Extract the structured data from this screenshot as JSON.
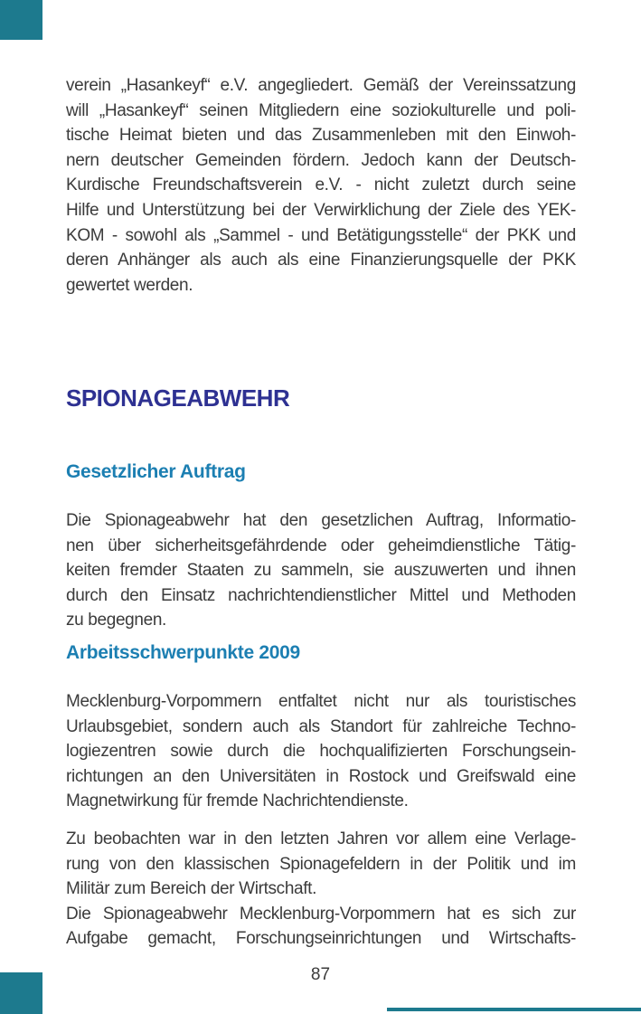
{
  "page": {
    "number": "87",
    "colors": {
      "accent_teal": "#1D7A8E",
      "section_heading": "#2E3192",
      "subheading": "#1C7FB2",
      "body_text": "#3B3B3B"
    }
  },
  "headings": {
    "section_title": "SPIONAGEABWEHR",
    "sub1": "Gesetzlicher Auftrag",
    "sub2": "Arbeitsschwerpunkte 2009"
  },
  "paragraphs": {
    "p1": [
      {
        "t": "verein „Hasankeyf“ e.V. angegliedert. Gemäß der Vereinssatzung",
        "j": true
      },
      {
        "t": "will „Hasankeyf“ seinen Mitgliedern eine soziokulturelle und poli-",
        "j": true
      },
      {
        "t": "tische Heimat bieten und das Zusammenleben mit den Einwoh-",
        "j": true
      },
      {
        "t": "nern deutscher Gemeinden fördern. Jedoch kann der Deutsch-",
        "j": true
      },
      {
        "t": "Kurdische Freundschaftsverein e.V. - nicht zuletzt durch seine",
        "j": true
      },
      {
        "t": "Hilfe und Unterstützung bei der Verwirklichung der Ziele des YEK-",
        "j": true
      },
      {
        "t": "KOM - sowohl als „Sammel - und Betätigungsstelle“ der PKK und",
        "j": true
      },
      {
        "t": "deren Anhänger als auch als eine Finanzierungsquelle der PKK",
        "j": true
      },
      {
        "t": "gewertet werden.",
        "j": false
      }
    ],
    "p2": [
      {
        "t": "Die Spionageabwehr hat den gesetzlichen Auftrag, Informatio-",
        "j": true
      },
      {
        "t": "nen über sicherheitsgefährdende oder geheimdienstliche Tätig-",
        "j": true
      },
      {
        "t": "keiten fremder Staaten zu sammeln, sie auszuwerten und ihnen",
        "j": true
      },
      {
        "t": "durch den Einsatz nachrichtendienstlicher Mittel und Methoden",
        "j": true
      },
      {
        "t": "zu begegnen.",
        "j": false
      }
    ],
    "p3": [
      {
        "t": "Mecklenburg-Vorpommern entfaltet nicht nur als touristisches",
        "j": true
      },
      {
        "t": "Urlaubsgebiet, sondern auch als Standort für zahlreiche Techno-",
        "j": true
      },
      {
        "t": "logiezentren sowie durch die hochqualifizierten Forschungsein-",
        "j": true
      },
      {
        "t": "richtungen an den Universitäten in Rostock und Greifswald eine",
        "j": true
      },
      {
        "t": "Magnetwirkung für fremde Nachrichtendienste.",
        "j": false
      }
    ],
    "p4": [
      {
        "t": "Zu beobachten war in den letzten Jahren vor allem eine Verlage-",
        "j": true
      },
      {
        "t": "rung von den klassischen Spionagefeldern in der Politik und im",
        "j": true
      },
      {
        "t": "Militär zum Bereich der Wirtschaft.",
        "j": false
      },
      {
        "t": "Die Spionageabwehr Mecklenburg-Vorpommern hat es sich zur",
        "j": true
      },
      {
        "t": "Aufgabe gemacht, Forschungseinrichtungen und Wirtschafts-",
        "j": true
      }
    ]
  }
}
